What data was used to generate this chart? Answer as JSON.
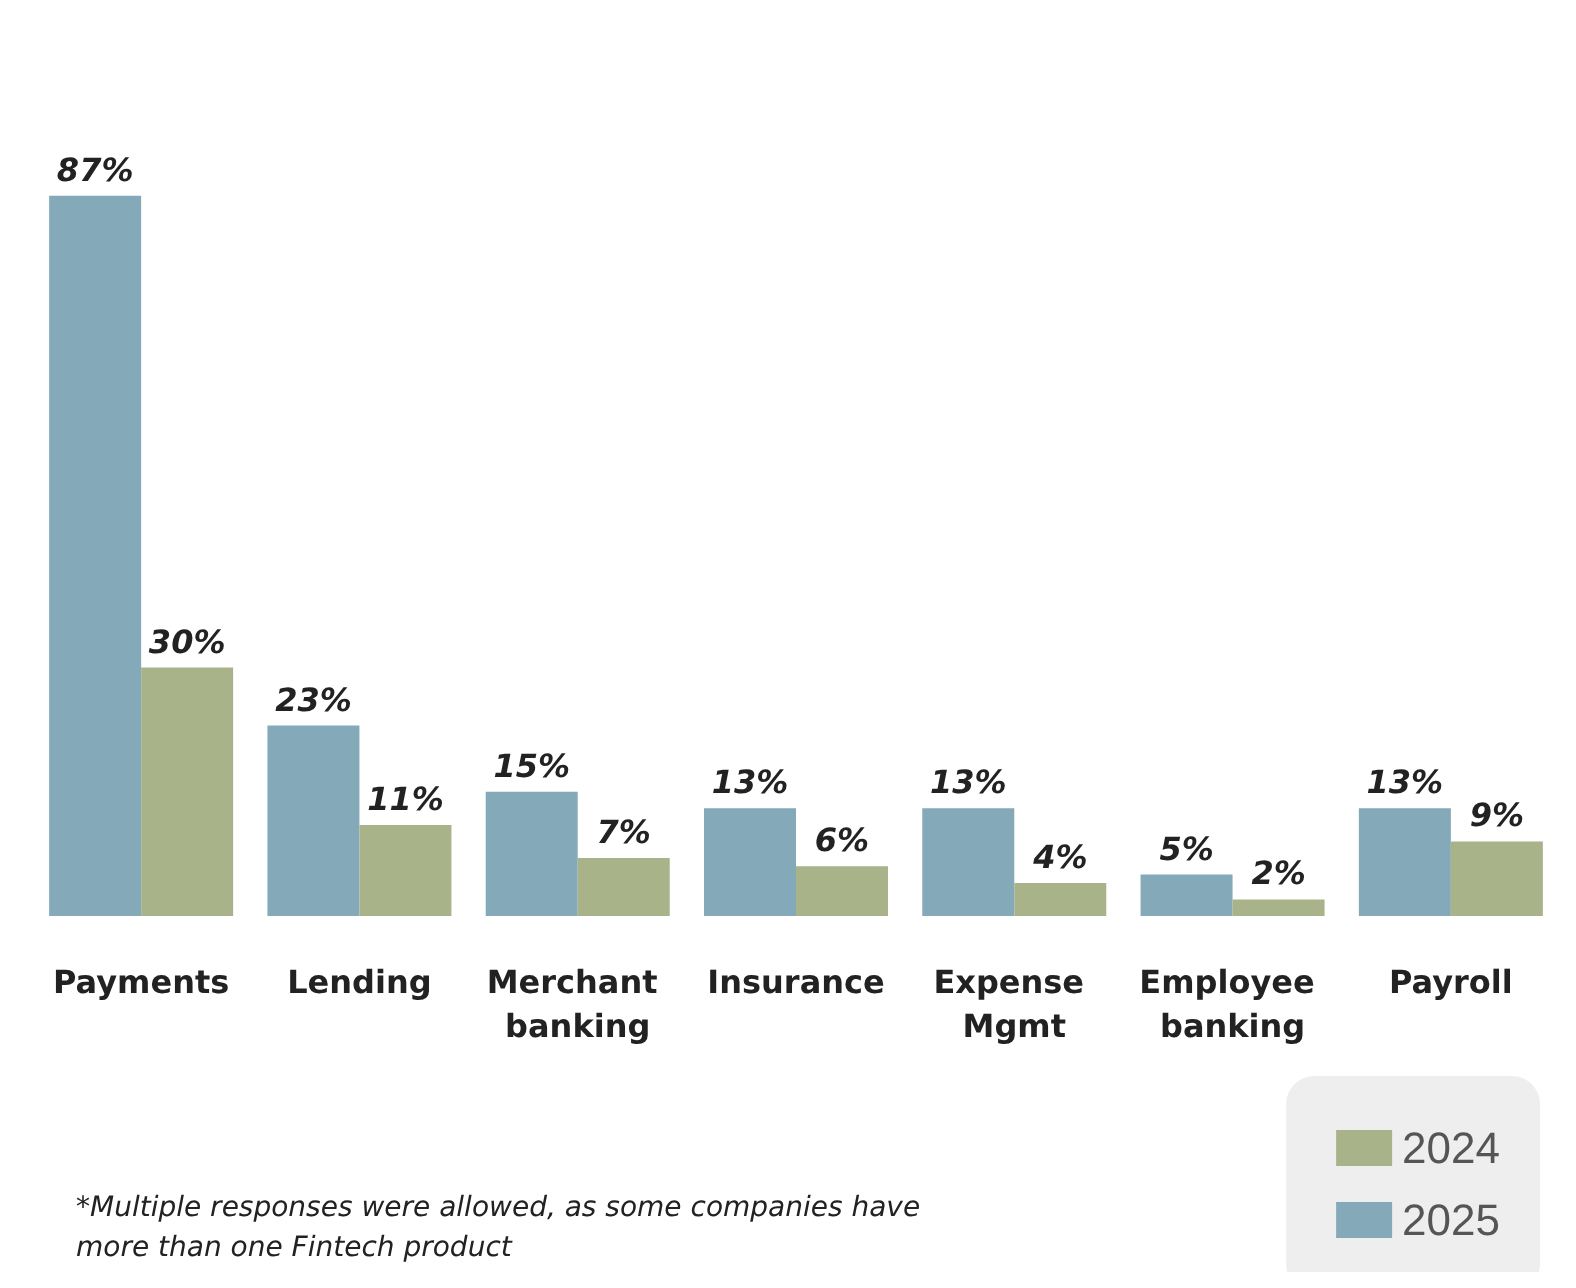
{
  "chart_data": {
    "type": "bar",
    "categories": [
      "Payments",
      "Lending",
      "Merchant banking",
      "Insurance",
      "Expense Mgmt",
      "Employee banking",
      "Payroll"
    ],
    "series": [
      {
        "name": "2025",
        "color": "#84a9b8",
        "values": [
          87,
          23,
          15,
          13,
          13,
          5,
          13
        ],
        "value_labels": [
          "87%",
          "23%",
          "15%",
          "13%",
          "13%",
          "5%",
          "13%"
        ]
      },
      {
        "name": "2024",
        "color": "#a8b38a",
        "values": [
          30,
          11,
          7,
          6,
          4,
          2,
          9
        ],
        "value_labels": [
          "30%",
          "11%",
          "7%",
          "6%",
          "4%",
          "2%",
          "9%"
        ]
      }
    ],
    "legend": "bottom right",
    "grid": false,
    "tick_labels": "x",
    "annotations": [
      "*Multiple responses were allowed, as some companies have more than one Fintech product"
    ]
  }
}
